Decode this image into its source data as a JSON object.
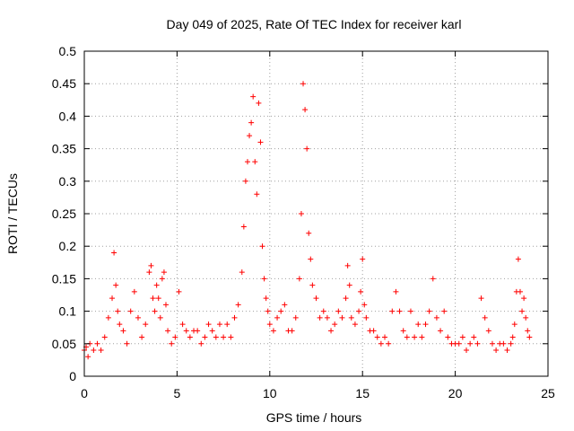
{
  "chart_data": {
    "type": "scatter",
    "title": "Day 049 of 2025, Rate Of TEC Index for receiver karl",
    "xlabel": "GPS time / hours",
    "ylabel": "ROTI / TECUs",
    "xlim": [
      0,
      25
    ],
    "ylim": [
      0,
      0.5
    ],
    "xticks": [
      0,
      5,
      10,
      15,
      20,
      25
    ],
    "yticks": [
      0,
      0.05,
      0.1,
      0.15,
      0.2,
      0.25,
      0.3,
      0.35,
      0.4,
      0.45,
      0.5
    ],
    "xtick_labels": [
      "0",
      "5",
      "10",
      "15",
      "20",
      "25"
    ],
    "ytick_labels": [
      "0",
      "0.05",
      "0.1",
      "0.15",
      "0.2",
      "0.25",
      "0.3",
      "0.35",
      "0.4",
      "0.45",
      "0.5"
    ],
    "grid": true,
    "legend": "none",
    "marker": "plus",
    "series_color": "#ff0000",
    "series": [
      {
        "x": [
          0.0,
          0.1,
          0.2,
          0.3,
          0.5,
          0.7,
          0.9,
          1.1,
          1.3,
          1.5,
          1.6,
          1.7,
          1.8,
          1.9,
          2.1,
          2.3,
          2.5,
          2.7,
          2.9,
          3.1,
          3.3,
          3.5,
          3.6,
          3.7,
          3.8,
          3.9,
          4.0,
          4.1,
          4.2,
          4.3,
          4.4,
          4.5,
          4.7,
          4.9,
          5.1,
          5.3,
          5.5,
          5.7,
          5.9,
          6.1,
          6.3,
          6.5,
          6.7,
          6.9,
          7.1,
          7.3,
          7.5,
          7.7,
          7.9,
          8.1,
          8.3,
          8.5,
          8.6,
          8.7,
          8.8,
          8.9,
          9.0,
          9.1,
          9.2,
          9.3,
          9.4,
          9.5,
          9.6,
          9.7,
          9.8,
          9.9,
          10.0,
          10.2,
          10.4,
          10.6,
          10.8,
          11.0,
          11.2,
          11.4,
          11.6,
          11.7,
          11.8,
          11.9,
          12.0,
          12.1,
          12.2,
          12.3,
          12.5,
          12.7,
          12.9,
          13.1,
          13.3,
          13.5,
          13.7,
          13.9,
          14.1,
          14.2,
          14.3,
          14.4,
          14.6,
          14.8,
          14.9,
          15.0,
          15.1,
          15.2,
          15.4,
          15.6,
          15.8,
          16.0,
          16.2,
          16.4,
          16.6,
          16.8,
          17.0,
          17.2,
          17.4,
          17.6,
          17.8,
          18.0,
          18.2,
          18.4,
          18.6,
          18.8,
          19.0,
          19.2,
          19.4,
          19.6,
          19.8,
          20.0,
          20.2,
          20.4,
          20.6,
          20.8,
          21.0,
          21.2,
          21.4,
          21.6,
          21.8,
          22.0,
          22.2,
          22.4,
          22.6,
          22.8,
          23.0,
          23.1,
          23.2,
          23.3,
          23.4,
          23.5,
          23.6,
          23.7,
          23.8,
          23.9,
          24.0
        ],
        "y": [
          0.04,
          0.045,
          0.03,
          0.05,
          0.04,
          0.05,
          0.04,
          0.06,
          0.09,
          0.12,
          0.19,
          0.14,
          0.1,
          0.08,
          0.07,
          0.05,
          0.1,
          0.13,
          0.09,
          0.06,
          0.08,
          0.16,
          0.17,
          0.12,
          0.1,
          0.14,
          0.12,
          0.09,
          0.15,
          0.16,
          0.11,
          0.07,
          0.05,
          0.06,
          0.13,
          0.08,
          0.07,
          0.06,
          0.07,
          0.07,
          0.05,
          0.06,
          0.08,
          0.07,
          0.06,
          0.08,
          0.06,
          0.08,
          0.06,
          0.09,
          0.11,
          0.16,
          0.23,
          0.3,
          0.33,
          0.37,
          0.39,
          0.43,
          0.33,
          0.28,
          0.42,
          0.36,
          0.2,
          0.15,
          0.12,
          0.1,
          0.08,
          0.07,
          0.09,
          0.1,
          0.11,
          0.07,
          0.07,
          0.09,
          0.15,
          0.25,
          0.45,
          0.41,
          0.35,
          0.22,
          0.18,
          0.14,
          0.12,
          0.09,
          0.1,
          0.09,
          0.07,
          0.08,
          0.1,
          0.09,
          0.12,
          0.17,
          0.14,
          0.09,
          0.08,
          0.1,
          0.13,
          0.18,
          0.11,
          0.09,
          0.07,
          0.07,
          0.06,
          0.05,
          0.06,
          0.05,
          0.1,
          0.13,
          0.1,
          0.07,
          0.06,
          0.1,
          0.06,
          0.08,
          0.06,
          0.08,
          0.1,
          0.15,
          0.09,
          0.07,
          0.1,
          0.06,
          0.05,
          0.05,
          0.05,
          0.06,
          0.04,
          0.05,
          0.06,
          0.05,
          0.12,
          0.09,
          0.07,
          0.05,
          0.04,
          0.05,
          0.05,
          0.04,
          0.05,
          0.06,
          0.08,
          0.13,
          0.18,
          0.13,
          0.1,
          0.12,
          0.09,
          0.07,
          0.06
        ]
      }
    ]
  }
}
